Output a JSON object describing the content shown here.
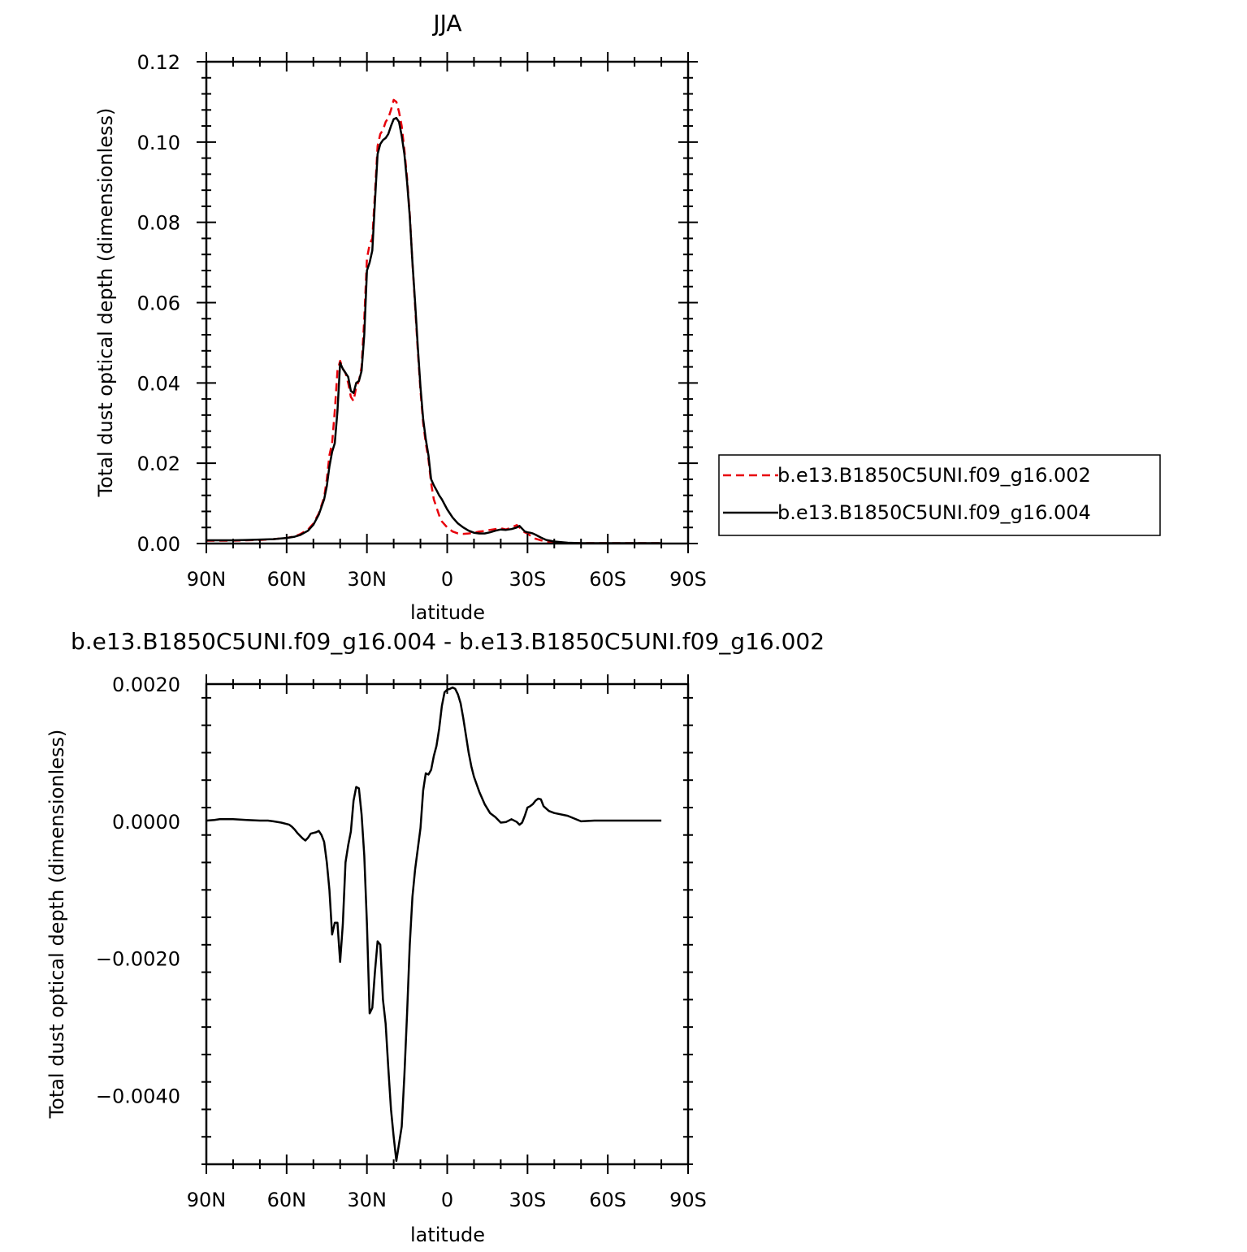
{
  "chart_data": [
    {
      "type": "line",
      "title": "JJA",
      "xlabel": "latitude",
      "ylabel": "Total dust optical depth (dimensionless)",
      "xlim": [
        90,
        -90
      ],
      "ylim": [
        0,
        0.12
      ],
      "x_ticks": [
        90,
        60,
        30,
        0,
        -30,
        -60,
        -90
      ],
      "x_tick_labels": [
        "90N",
        "60N",
        "30N",
        "0",
        "30S",
        "60S",
        "90S"
      ],
      "y_ticks": [
        0,
        0.02,
        0.04,
        0.06,
        0.08,
        0.1,
        0.12
      ],
      "y_tick_labels": [
        "0.00",
        "0.02",
        "0.04",
        "0.06",
        "0.08",
        "0.10",
        "0.12"
      ],
      "legend_position": "right",
      "series": [
        {
          "name": "b.e13.B1850C5UNI.f09_g16.002",
          "color": "#e8000b",
          "dash": "dashed",
          "x": [
            90,
            85,
            80,
            75,
            70,
            65,
            60,
            57,
            55,
            52,
            50,
            48,
            46,
            45,
            44,
            43,
            42,
            41,
            40,
            39,
            38,
            37,
            36,
            35,
            34,
            33,
            32,
            31,
            30,
            29,
            28,
            27,
            26,
            25,
            24,
            23,
            22,
            21,
            20,
            19,
            18,
            17,
            16,
            15,
            14,
            13,
            12,
            11,
            10,
            9,
            8,
            7,
            6,
            5,
            4,
            3,
            2,
            0,
            -2,
            -4,
            -6,
            -8,
            -10,
            -12,
            -14,
            -16,
            -18,
            -20,
            -22,
            -24,
            -26,
            -27,
            -28,
            -29,
            -30,
            -31,
            -32,
            -33,
            -35,
            -37,
            -40,
            -45,
            -50,
            -55,
            -60,
            -65,
            -70,
            -80
          ],
          "y": [
            0.0007,
            0.0007,
            0.0007,
            0.0008,
            0.0009,
            0.0011,
            0.0014,
            0.0018,
            0.0023,
            0.0035,
            0.005,
            0.0075,
            0.0115,
            0.016,
            0.022,
            0.025,
            0.033,
            0.043,
            0.0455,
            0.0435,
            0.0425,
            0.04,
            0.0365,
            0.0355,
            0.039,
            0.0405,
            0.044,
            0.056,
            0.071,
            0.0745,
            0.076,
            0.087,
            0.099,
            0.102,
            0.103,
            0.105,
            0.106,
            0.108,
            0.1105,
            0.11,
            0.1075,
            0.104,
            0.098,
            0.091,
            0.082,
            0.07,
            0.059,
            0.048,
            0.038,
            0.03,
            0.025,
            0.021,
            0.015,
            0.011,
            0.009,
            0.007,
            0.0055,
            0.004,
            0.003,
            0.0025,
            0.0024,
            0.0025,
            0.0027,
            0.003,
            0.0031,
            0.0034,
            0.0036,
            0.0038,
            0.0035,
            0.004,
            0.0046,
            0.004,
            0.0032,
            0.0028,
            0.0025,
            0.002,
            0.0015,
            0.0012,
            0.0008,
            0.0005,
            0.0003,
            0.0001,
            0.0001,
            0.0001,
            0.0001,
            0.0001,
            0.0001,
            0.0001
          ]
        },
        {
          "name": "b.e13.B1850C5UNI.f09_g16.004",
          "color": "#000000",
          "dash": "solid",
          "x": [
            90,
            85,
            80,
            75,
            70,
            65,
            60,
            57,
            55,
            52,
            50,
            48,
            46,
            45,
            44,
            43,
            42,
            41,
            40,
            39,
            38,
            37,
            36,
            35,
            34,
            33,
            32,
            31,
            30,
            29,
            28,
            27,
            26,
            25,
            24,
            23,
            22,
            21,
            20,
            19,
            18,
            17,
            16,
            15,
            14,
            13,
            12,
            11,
            10,
            9,
            8,
            7,
            6,
            5,
            4,
            3,
            2,
            0,
            -2,
            -4,
            -6,
            -8,
            -10,
            -12,
            -14,
            -16,
            -18,
            -20,
            -22,
            -24,
            -26,
            -27,
            -28,
            -29,
            -30,
            -31,
            -32,
            -33,
            -35,
            -37,
            -40,
            -45,
            -50,
            -55,
            -60,
            -65,
            -70,
            -80
          ],
          "y": [
            0.0008,
            0.0008,
            0.0008,
            0.0009,
            0.001,
            0.0011,
            0.0014,
            0.0017,
            0.0021,
            0.0032,
            0.0047,
            0.0072,
            0.011,
            0.0143,
            0.0192,
            0.0228,
            0.025,
            0.033,
            0.045,
            0.0435,
            0.0425,
            0.0415,
            0.038,
            0.0375,
            0.04,
            0.0405,
            0.043,
            0.052,
            0.068,
            0.07,
            0.073,
            0.085,
            0.097,
            0.0995,
            0.1005,
            0.101,
            0.102,
            0.104,
            0.1057,
            0.106,
            0.105,
            0.1015,
            0.097,
            0.09,
            0.0815,
            0.07,
            0.06,
            0.049,
            0.039,
            0.031,
            0.026,
            0.022,
            0.016,
            0.0145,
            0.0133,
            0.012,
            0.011,
            0.0085,
            0.0065,
            0.005,
            0.004,
            0.0032,
            0.0027,
            0.0025,
            0.0025,
            0.0028,
            0.0032,
            0.0035,
            0.0034,
            0.0036,
            0.004,
            0.0044,
            0.0037,
            0.003,
            0.0028,
            0.0027,
            0.0025,
            0.0022,
            0.0015,
            0.0009,
            0.0005,
            0.0002,
            0.0001,
            0.0001,
            0.0001,
            0.0001,
            0.0001,
            0.0001
          ]
        }
      ]
    },
    {
      "type": "line",
      "title": "b.e13.B1850C5UNI.f09_g16.004 - b.e13.B1850C5UNI.f09_g16.002",
      "xlabel": "latitude",
      "ylabel": "Total dust optical depth (dimensionless)",
      "xlim": [
        90,
        -90
      ],
      "ylim": [
        -0.005,
        0.002
      ],
      "x_ticks": [
        90,
        60,
        30,
        0,
        -30,
        -60,
        -90
      ],
      "x_tick_labels": [
        "90N",
        "60N",
        "30N",
        "0",
        "30S",
        "60S",
        "90S"
      ],
      "y_ticks": [
        0.002,
        0,
        -0.002,
        -0.004
      ],
      "y_tick_labels": [
        "0.0020",
        "0.0000",
        "−0.0020",
        "−0.0040"
      ],
      "series": [
        {
          "color": "#000000",
          "dash": "solid",
          "x": [
            90,
            87,
            85,
            82,
            80,
            75,
            70,
            67,
            65,
            62,
            60,
            59,
            58,
            57,
            56,
            55,
            54,
            53,
            52,
            51,
            50,
            49,
            48,
            47,
            46,
            45,
            44,
            43,
            42,
            41,
            40,
            39,
            38,
            37,
            36,
            35,
            34,
            33,
            32,
            31,
            30,
            29,
            28,
            27,
            26,
            25,
            24,
            23,
            22,
            21,
            20,
            19,
            18,
            17,
            16,
            15,
            14,
            13,
            12,
            11,
            10,
            9,
            8,
            7,
            6,
            5,
            4,
            3,
            2,
            1,
            0,
            -1,
            -2,
            -3,
            -4,
            -5,
            -6,
            -7,
            -8,
            -9,
            -10,
            -12,
            -14,
            -16,
            -18,
            -20,
            -22,
            -24,
            -26,
            -27,
            -28,
            -29,
            -30,
            -31,
            -32,
            -33,
            -34,
            -35,
            -36,
            -38,
            -40,
            -45,
            -50,
            -55,
            -60,
            -65,
            -70,
            -80
          ],
          "y": [
            1e-05,
            2e-05,
            3e-05,
            3e-05,
            3e-05,
            2e-05,
            1e-05,
            1e-05,
            0.0,
            -2e-05,
            -4e-05,
            -5e-05,
            -8e-05,
            -0.00012,
            -0.00017,
            -0.00021,
            -0.00025,
            -0.00028,
            -0.00024,
            -0.00018,
            -0.00017,
            -0.00016,
            -0.00014,
            -0.0002,
            -0.0003,
            -0.0006,
            -0.001,
            -0.00165,
            -0.00148,
            -0.00148,
            -0.00205,
            -0.0015,
            -0.0006,
            -0.00035,
            -0.00015,
            0.0003,
            0.0005,
            0.00048,
            0.0001,
            -0.0005,
            -0.0015,
            -0.0028,
            -0.00272,
            -0.0022,
            -0.00175,
            -0.0018,
            -0.0026,
            -0.00295,
            -0.0036,
            -0.0042,
            -0.0046,
            -0.00495,
            -0.0047,
            -0.00445,
            -0.0037,
            -0.0028,
            -0.0018,
            -0.0011,
            -0.0007,
            -0.0004,
            -0.0001,
            0.00045,
            0.0007,
            0.00068,
            0.00075,
            0.00095,
            0.0011,
            0.00135,
            0.00168,
            0.00188,
            0.00192,
            0.00193,
            0.00195,
            0.00193,
            0.00185,
            0.00172,
            0.0015,
            0.00125,
            0.001,
            0.0008,
            0.00065,
            0.00043,
            0.00025,
            0.00012,
            6e-05,
            -2e-05,
            -1e-05,
            3e-05,
            -1e-05,
            -5e-05,
            -2e-05,
            8e-05,
            0.0002,
            0.00022,
            0.00025,
            0.0003,
            0.00033,
            0.00032,
            0.00022,
            0.00015,
            0.00012,
            8e-05,
            0.0,
            1e-05,
            1e-05,
            1e-05,
            1e-05,
            1e-05
          ]
        }
      ]
    }
  ]
}
